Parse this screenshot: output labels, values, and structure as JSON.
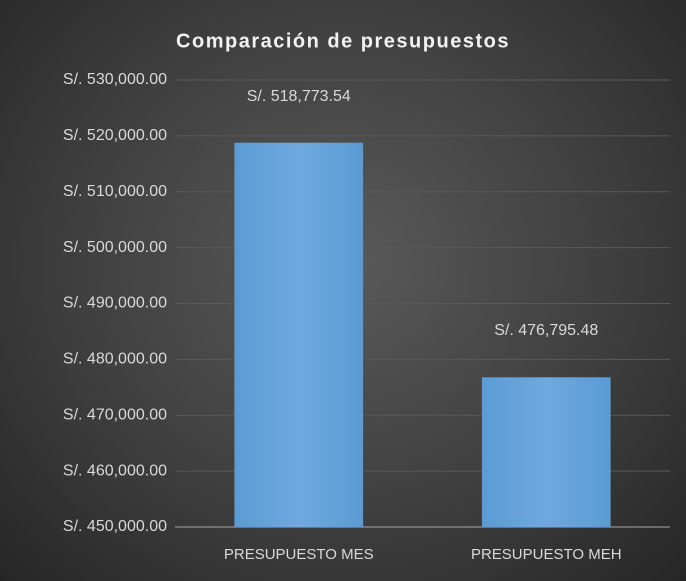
{
  "chart_data": {
    "type": "bar",
    "title": "Comparación de presupuestos",
    "categories": [
      "PRESUPUESTO MES",
      "PRESUPUESTO MEH"
    ],
    "values": [
      518773.54,
      476795.48
    ],
    "value_labels": [
      "S/. 518,773.54",
      "S/. 476,795.48"
    ],
    "color": "#5b9bd5",
    "ylim": [
      450000,
      530000
    ],
    "yticks": [
      {
        "value": 450000,
        "label": "S/. 450,000.00"
      },
      {
        "value": 460000,
        "label": "S/. 460,000.00"
      },
      {
        "value": 470000,
        "label": "S/. 470,000.00"
      },
      {
        "value": 480000,
        "label": "S/. 480,000.00"
      },
      {
        "value": 490000,
        "label": "S/. 490,000.00"
      },
      {
        "value": 500000,
        "label": "S/. 500,000.00"
      },
      {
        "value": 510000,
        "label": "S/. 510,000.00"
      },
      {
        "value": 520000,
        "label": "S/. 520,000.00"
      },
      {
        "value": 530000,
        "label": "S/. 530,000.00"
      }
    ],
    "grid": true
  }
}
